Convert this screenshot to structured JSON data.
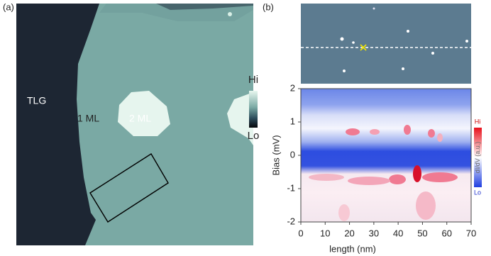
{
  "figure": {
    "panel_a": {
      "label": "(a)",
      "annotations": [
        "TLG",
        "1 ML",
        "2 ML"
      ],
      "colorbar_high": "Hi",
      "colorbar_low": "Lo"
    }
  },
  "chart_data": {
    "type": "heatmap",
    "panel_label": "(b)",
    "xlabel": "length (nm)",
    "ylabel": "Bias (mV)",
    "xlim": [
      0,
      70
    ],
    "ylim": [
      -2,
      2
    ],
    "xticks": [
      0,
      10,
      20,
      30,
      40,
      50,
      60,
      70
    ],
    "yticks": [
      -2,
      -1,
      0,
      1,
      2
    ],
    "colorbar_label": "dI/dV (a.u.)",
    "colorbar_high": "Hi",
    "colorbar_low": "Lo"
  }
}
